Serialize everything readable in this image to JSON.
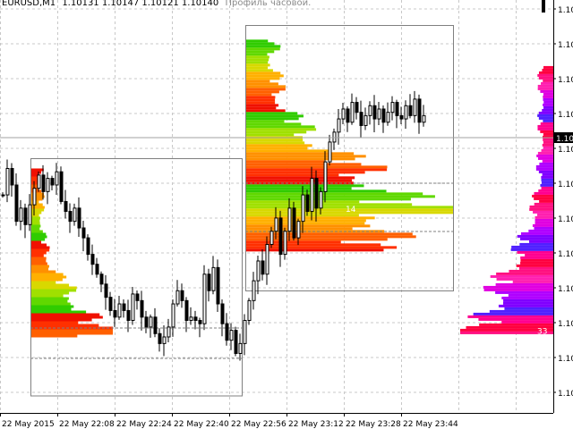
{
  "window": {
    "symbol_tf": "EURUSD,M1",
    "ohlc_values": "1.10131 1.10147 1.10121 1.10140",
    "description": "Профиль часовой."
  },
  "colors": {
    "background": "#ffffff",
    "grid": "#c8c8c8",
    "candle": "#000000",
    "box": "#808080",
    "hline": "#a0a0a0",
    "price_label_bg": "#000000",
    "price_label_fg": "#ffffff"
  },
  "chart_data": {
    "type": "candlestick",
    "title": "",
    "x_tick_labels": [
      "22 May 2015",
      "22 May 22:08",
      "22 May 22:24",
      "22 May 22:40",
      "22 May 22:56",
      "22 May 23:12",
      "22 May 23:28",
      "22 May 23:44"
    ],
    "y_tick_labels": [
      "1.10",
      "1.10",
      "1.10",
      "1.10",
      "1.10",
      "1.10",
      "1.10",
      "1.10",
      "1.10",
      "1.10",
      "1.10",
      "1.10"
    ],
    "current_price_label": "1.10",
    "grid": true,
    "bar_interval": "M1",
    "candles_close": [
      1.10116,
      1.10124,
      1.10119,
      1.10108,
      1.10112,
      1.10107,
      1.10113,
      1.10118,
      1.10122,
      1.10117,
      1.10121,
      1.10119,
      1.10123,
      1.10114,
      1.10111,
      1.10108,
      1.10112,
      1.10106,
      1.10103,
      1.10098,
      1.10095,
      1.10092,
      1.10089,
      1.10085,
      1.10081,
      1.10079,
      1.10083,
      1.10081,
      1.10078,
      1.10086,
      1.10084,
      1.10079,
      1.10076,
      1.10079,
      1.10074,
      1.10071,
      1.10073,
      1.10076,
      1.10083,
      1.10087,
      1.10084,
      1.10078,
      1.10079,
      1.10078,
      1.10077,
      1.10092,
      1.10087,
      1.10094,
      1.10083,
      1.10077,
      1.10072,
      1.10075,
      1.10068,
      1.10071,
      1.10078,
      1.10084,
      1.1009,
      1.10096,
      1.10092,
      1.10101,
      1.10105,
      1.10109,
      1.10098,
      1.10105,
      1.10112,
      1.10103,
      1.10108,
      1.10116,
      1.10111,
      1.10121,
      1.10112,
      1.10117,
      1.10126,
      1.10132,
      1.10135,
      1.10139,
      1.10142,
      1.10138,
      1.10144,
      1.10141,
      1.10137,
      1.1014,
      1.10143,
      1.10139,
      1.10142,
      1.10138,
      1.10141,
      1.10144,
      1.1014,
      1.10139,
      1.10143,
      1.1014,
      1.10145,
      1.10138,
      1.1014
    ],
    "profiles": [
      {
        "name": "hour-1",
        "price_low": 1.10073,
        "price_high": 1.10124,
        "poc_price": 1.10075,
        "poc_label": ""
      },
      {
        "name": "hour-2",
        "price_low": 1.10099,
        "price_high": 1.10163,
        "poc_price": 1.10112,
        "poc_label": "14"
      },
      {
        "name": "session",
        "price_low": 1.10074,
        "price_high": 1.10155,
        "poc_price": 1.10075,
        "poc_label": "33"
      }
    ]
  }
}
